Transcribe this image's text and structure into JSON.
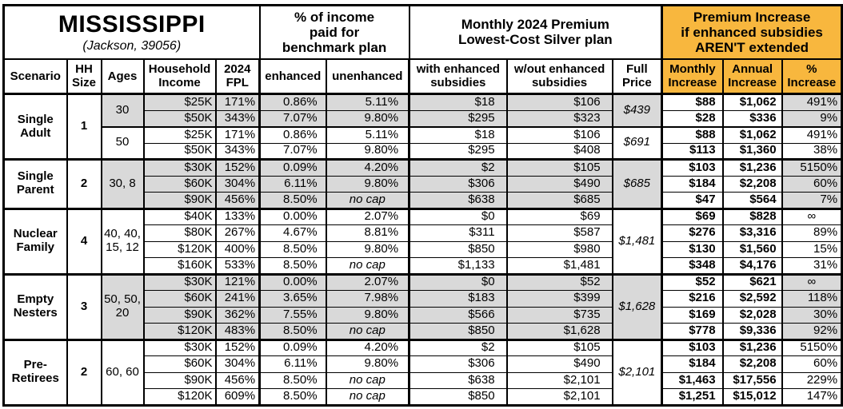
{
  "colors": {
    "accent_orange": "#F8B73E",
    "shaded_gray": "#D9D9D9",
    "border": "#000000"
  },
  "chart_data": {
    "type": "table",
    "title": "MISSISSIPPI",
    "subtitle": "(Jackson, 39056)",
    "column_groups": {
      "benchmark": "% of income\npaid for\nbenchmark plan",
      "premium": "Monthly 2024 Premium\nLowest-Cost Silver plan",
      "increase": "Premium Increase\nif enhanced subsidies\nAREN'T extended"
    },
    "columns": [
      "Scenario",
      "HH\nSize",
      "Ages",
      "Household\nIncome",
      "2024\nFPL",
      "enhanced",
      "unenhanced",
      "with enhanced\nsubsidies",
      "w/out enhanced\nsubsidies",
      "Full\nPrice",
      "Monthly\nIncrease",
      "Annual\nIncrease",
      "%\nIncrease"
    ],
    "sections": [
      {
        "scenario": "Single\nAdult",
        "hh_size": "1",
        "subgroups": [
          {
            "ages": "30",
            "shaded": true,
            "full_price": "$439",
            "rows": [
              {
                "income": "$25K",
                "fpl": "171%",
                "enh": "0.86%",
                "unenh": "5.11%",
                "with_s": "$18",
                "wo_s": "$106",
                "monthly": "$88",
                "annual": "$1,062",
                "pct": "491%"
              },
              {
                "income": "$50K",
                "fpl": "343%",
                "enh": "7.07%",
                "unenh": "9.80%",
                "with_s": "$295",
                "wo_s": "$323",
                "monthly": "$28",
                "annual": "$336",
                "pct": "9%"
              }
            ]
          },
          {
            "ages": "50",
            "shaded": false,
            "full_price": "$691",
            "rows": [
              {
                "income": "$25K",
                "fpl": "171%",
                "enh": "0.86%",
                "unenh": "5.11%",
                "with_s": "$18",
                "wo_s": "$106",
                "monthly": "$88",
                "annual": "$1,062",
                "pct": "491%"
              },
              {
                "income": "$50K",
                "fpl": "343%",
                "enh": "7.07%",
                "unenh": "9.80%",
                "with_s": "$295",
                "wo_s": "$408",
                "monthly": "$113",
                "annual": "$1,360",
                "pct": "38%"
              }
            ]
          }
        ]
      },
      {
        "scenario": "Single\nParent",
        "hh_size": "2",
        "subgroups": [
          {
            "ages": "30, 8",
            "shaded": true,
            "full_price": "$685",
            "rows": [
              {
                "income": "$30K",
                "fpl": "152%",
                "enh": "0.09%",
                "unenh": "4.20%",
                "with_s": "$2",
                "wo_s": "$105",
                "monthly": "$103",
                "annual": "$1,236",
                "pct": "5150%"
              },
              {
                "income": "$60K",
                "fpl": "304%",
                "enh": "6.11%",
                "unenh": "9.80%",
                "with_s": "$306",
                "wo_s": "$490",
                "monthly": "$184",
                "annual": "$2,208",
                "pct": "60%"
              },
              {
                "income": "$90K",
                "fpl": "456%",
                "enh": "8.50%",
                "unenh": "no cap",
                "with_s": "$638",
                "wo_s": "$685",
                "monthly": "$47",
                "annual": "$564",
                "pct": "7%"
              }
            ]
          }
        ]
      },
      {
        "scenario": "Nuclear\nFamily",
        "hh_size": "4",
        "subgroups": [
          {
            "ages": "40, 40,\n15, 12",
            "shaded": false,
            "full_price": "$1,481",
            "rows": [
              {
                "income": "$40K",
                "fpl": "133%",
                "enh": "0.00%",
                "unenh": "2.07%",
                "with_s": "$0",
                "wo_s": "$69",
                "monthly": "$69",
                "annual": "$828",
                "pct": "∞"
              },
              {
                "income": "$80K",
                "fpl": "267%",
                "enh": "4.67%",
                "unenh": "8.81%",
                "with_s": "$311",
                "wo_s": "$587",
                "monthly": "$276",
                "annual": "$3,316",
                "pct": "89%"
              },
              {
                "income": "$120K",
                "fpl": "400%",
                "enh": "8.50%",
                "unenh": "9.80%",
                "with_s": "$850",
                "wo_s": "$980",
                "monthly": "$130",
                "annual": "$1,560",
                "pct": "15%"
              },
              {
                "income": "$160K",
                "fpl": "533%",
                "enh": "8.50%",
                "unenh": "no cap",
                "with_s": "$1,133",
                "wo_s": "$1,481",
                "monthly": "$348",
                "annual": "$4,176",
                "pct": "31%"
              }
            ]
          }
        ]
      },
      {
        "scenario": "Empty\nNesters",
        "hh_size": "3",
        "subgroups": [
          {
            "ages": "50, 50,\n20",
            "shaded": true,
            "full_price": "$1,628",
            "rows": [
              {
                "income": "$30K",
                "fpl": "121%",
                "enh": "0.00%",
                "unenh": "2.07%",
                "with_s": "$0",
                "wo_s": "$52",
                "monthly": "$52",
                "annual": "$621",
                "pct": "∞"
              },
              {
                "income": "$60K",
                "fpl": "241%",
                "enh": "3.65%",
                "unenh": "7.98%",
                "with_s": "$183",
                "wo_s": "$399",
                "monthly": "$216",
                "annual": "$2,592",
                "pct": "118%"
              },
              {
                "income": "$90K",
                "fpl": "362%",
                "enh": "7.55%",
                "unenh": "9.80%",
                "with_s": "$566",
                "wo_s": "$735",
                "monthly": "$169",
                "annual": "$2,028",
                "pct": "30%"
              },
              {
                "income": "$120K",
                "fpl": "483%",
                "enh": "8.50%",
                "unenh": "no cap",
                "with_s": "$850",
                "wo_s": "$1,628",
                "monthly": "$778",
                "annual": "$9,336",
                "pct": "92%"
              }
            ]
          }
        ]
      },
      {
        "scenario": "Pre-\nRetirees",
        "hh_size": "2",
        "subgroups": [
          {
            "ages": "60, 60",
            "shaded": false,
            "full_price": "$2,101",
            "rows": [
              {
                "income": "$30K",
                "fpl": "152%",
                "enh": "0.09%",
                "unenh": "4.20%",
                "with_s": "$2",
                "wo_s": "$105",
                "monthly": "$103",
                "annual": "$1,236",
                "pct": "5150%"
              },
              {
                "income": "$60K",
                "fpl": "304%",
                "enh": "6.11%",
                "unenh": "9.80%",
                "with_s": "$306",
                "wo_s": "$490",
                "monthly": "$184",
                "annual": "$2,208",
                "pct": "60%"
              },
              {
                "income": "$90K",
                "fpl": "456%",
                "enh": "8.50%",
                "unenh": "no cap",
                "with_s": "$638",
                "wo_s": "$2,101",
                "monthly": "$1,463",
                "annual": "$17,556",
                "pct": "229%"
              },
              {
                "income": "$120K",
                "fpl": "609%",
                "enh": "8.50%",
                "unenh": "no cap",
                "with_s": "$850",
                "wo_s": "$2,101",
                "monthly": "$1,251",
                "annual": "$15,012",
                "pct": "147%"
              }
            ]
          }
        ]
      }
    ]
  }
}
